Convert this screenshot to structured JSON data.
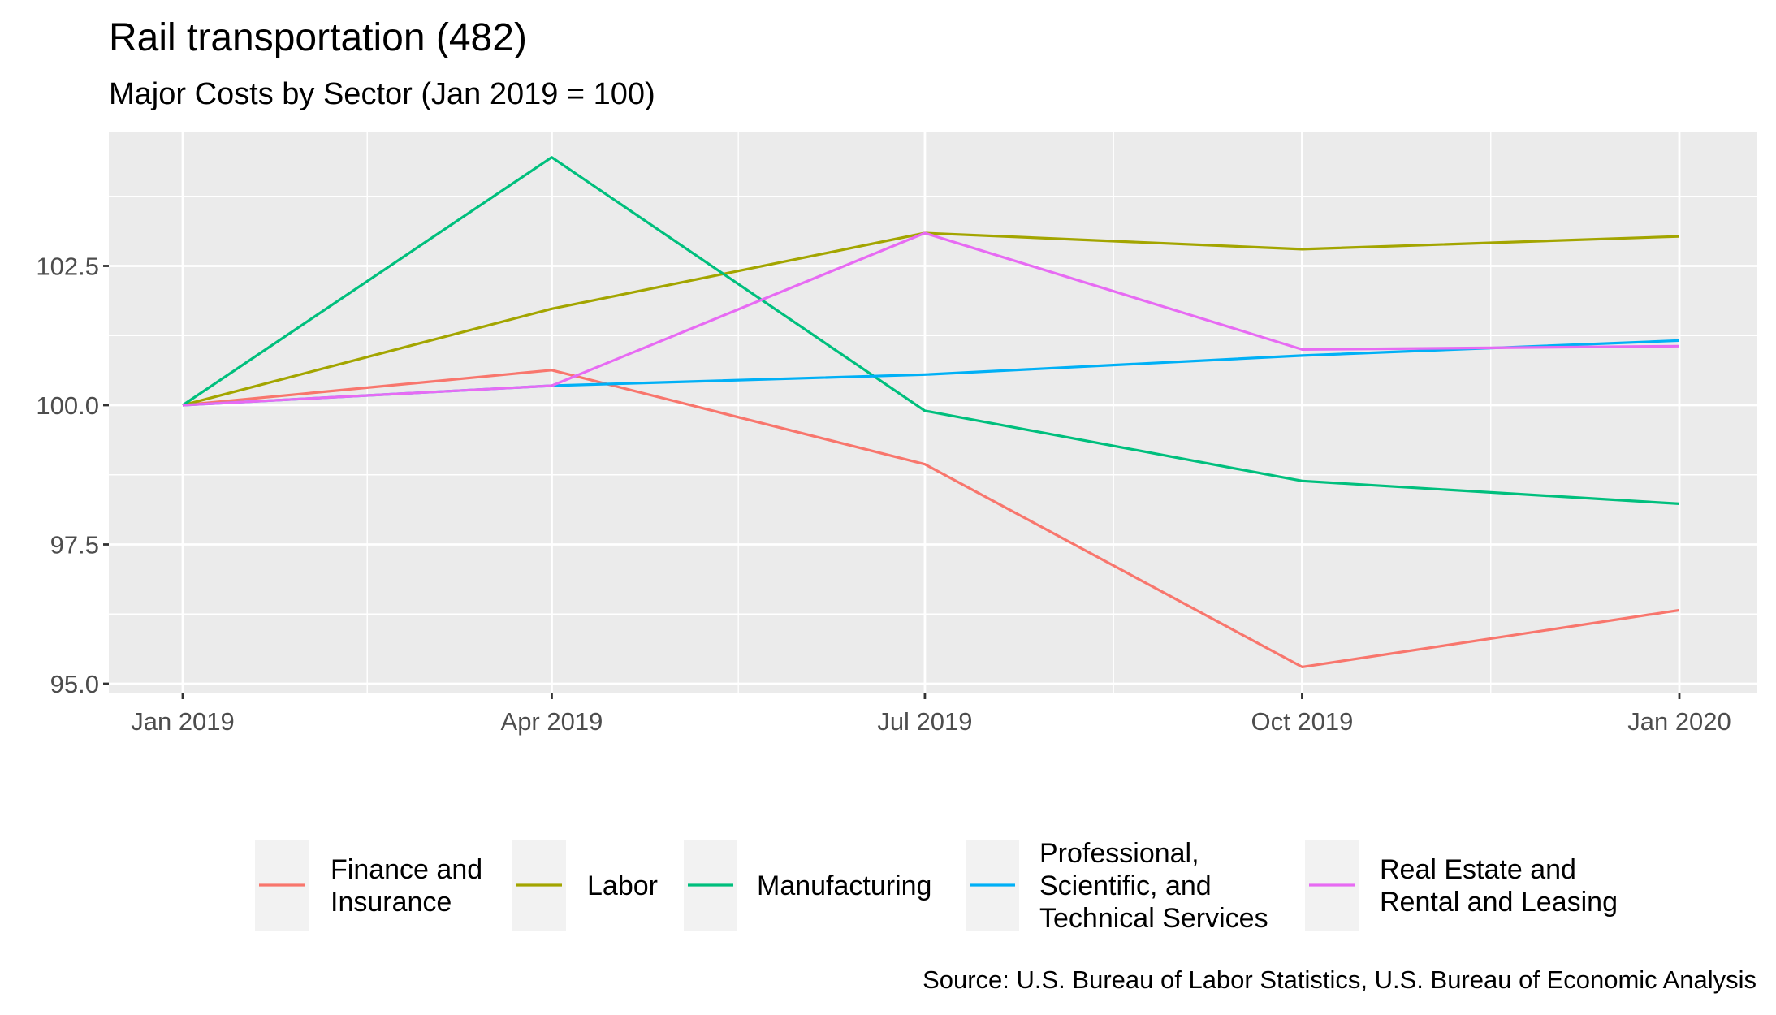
{
  "chart_data": {
    "type": "line",
    "title": "Rail transportation (482)",
    "subtitle": "Major Costs by Sector (Jan 2019 = 100)",
    "caption": "Source: U.S. Bureau of Labor Statistics, U.S. Bureau of Economic Analysis",
    "xlabel": "",
    "ylabel": "",
    "x": [
      "2019-01-01",
      "2019-04-01",
      "2019-07-01",
      "2019-10-01",
      "2020-01-01"
    ],
    "x_day_offsets": [
      0,
      90,
      181,
      273,
      365
    ],
    "x_ticks": [
      "Jan 2019",
      "Apr 2019",
      "Jul 2019",
      "Oct 2019",
      "Jan 2020"
    ],
    "y_ticks": [
      "95.0",
      "97.5",
      "100.0",
      "102.5"
    ],
    "y_tick_values": [
      95.0,
      97.5,
      100.0,
      102.5
    ],
    "ylim": [
      94.83,
      104.9
    ],
    "grid": true,
    "legend_position": "bottom",
    "series": [
      {
        "name": "Finance and Insurance",
        "label_lines": [
          "Finance and",
          "Insurance"
        ],
        "color": "#F8766D",
        "values": [
          100.0,
          100.63,
          98.94,
          95.3,
          96.32
        ]
      },
      {
        "name": "Labor",
        "label_lines": [
          "Labor"
        ],
        "color": "#A3A500",
        "values": [
          100.0,
          101.73,
          103.09,
          102.8,
          103.03
        ]
      },
      {
        "name": "Manufacturing",
        "label_lines": [
          "Manufacturing"
        ],
        "color": "#00BF7D",
        "values": [
          100.0,
          104.45,
          99.9,
          98.64,
          98.23
        ]
      },
      {
        "name": "Professional, Scientific, and Technical Services",
        "label_lines": [
          "Professional,",
          "Scientific, and",
          "Technical Services"
        ],
        "color": "#00B0F6",
        "values": [
          100.0,
          100.35,
          100.55,
          100.89,
          101.16
        ]
      },
      {
        "name": "Real Estate and Rental and Leasing",
        "label_lines": [
          "Real Estate and",
          "Rental and Leasing"
        ],
        "color": "#E76BF3",
        "values": [
          100.0,
          100.35,
          103.09,
          101.0,
          101.06
        ]
      }
    ]
  }
}
